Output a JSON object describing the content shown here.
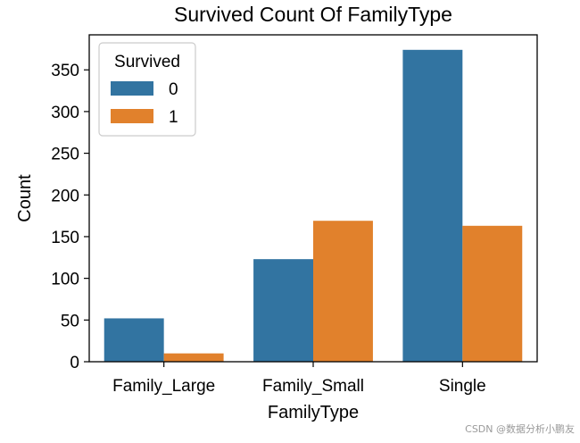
{
  "chart_data": {
    "type": "bar",
    "title": "Survived Count Of FamilyType",
    "xlabel": "FamilyType",
    "ylabel": "Count",
    "categories": [
      "Family_Large",
      "Family_Small",
      "Single"
    ],
    "series": [
      {
        "name": "0",
        "values": [
          52,
          123,
          374
        ],
        "color": "#3274a1"
      },
      {
        "name": "1",
        "values": [
          10,
          169,
          163
        ],
        "color": "#e1812c"
      }
    ],
    "ylim": [
      0,
      392
    ],
    "yticks": [
      0,
      50,
      100,
      150,
      200,
      250,
      300,
      350
    ],
    "legend": {
      "title": "Survived",
      "position": "top-left"
    },
    "grid": false
  },
  "watermark": "CSDN @数据分析小鹏友"
}
